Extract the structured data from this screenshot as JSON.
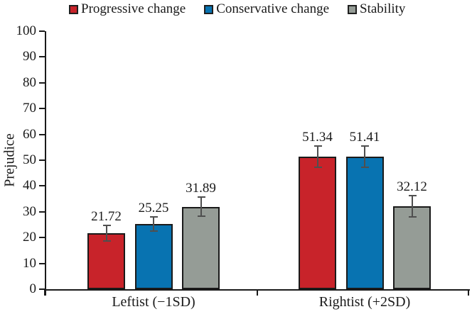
{
  "figure": {
    "background": "#ffffff",
    "axis_color": "#1a1a1a",
    "error_bar_color": "#4f4f4f"
  },
  "chart_data": {
    "type": "bar",
    "title": "",
    "xlabel": "",
    "ylabel": "Prejudice",
    "categories": [
      "Leftist (−1SD)",
      "Rightist (+2SD)"
    ],
    "series": [
      {
        "name": "Progressive change",
        "color": "#c8232a",
        "values": [
          21.72,
          51.34
        ],
        "value_labels": [
          "21.72",
          "51.34"
        ],
        "errors": [
          3.0,
          4.1
        ]
      },
      {
        "name": "Conservative change",
        "color": "#0873b1",
        "values": [
          25.25,
          51.41
        ],
        "value_labels": [
          "25.25",
          "51.41"
        ],
        "errors": [
          2.7,
          4.1
        ]
      },
      {
        "name": "Stability",
        "color": "#959c96",
        "values": [
          31.89,
          32.12
        ],
        "value_labels": [
          "31.89",
          "32.12"
        ],
        "errors": [
          3.7,
          4.1
        ]
      }
    ],
    "ylim": [
      0,
      100
    ],
    "yticks": [
      "0",
      "10",
      "20",
      "30",
      "40",
      "50",
      "60",
      "70",
      "80",
      "90",
      "100"
    ],
    "grid": false,
    "legend_position": "top",
    "error_bars": true
  }
}
